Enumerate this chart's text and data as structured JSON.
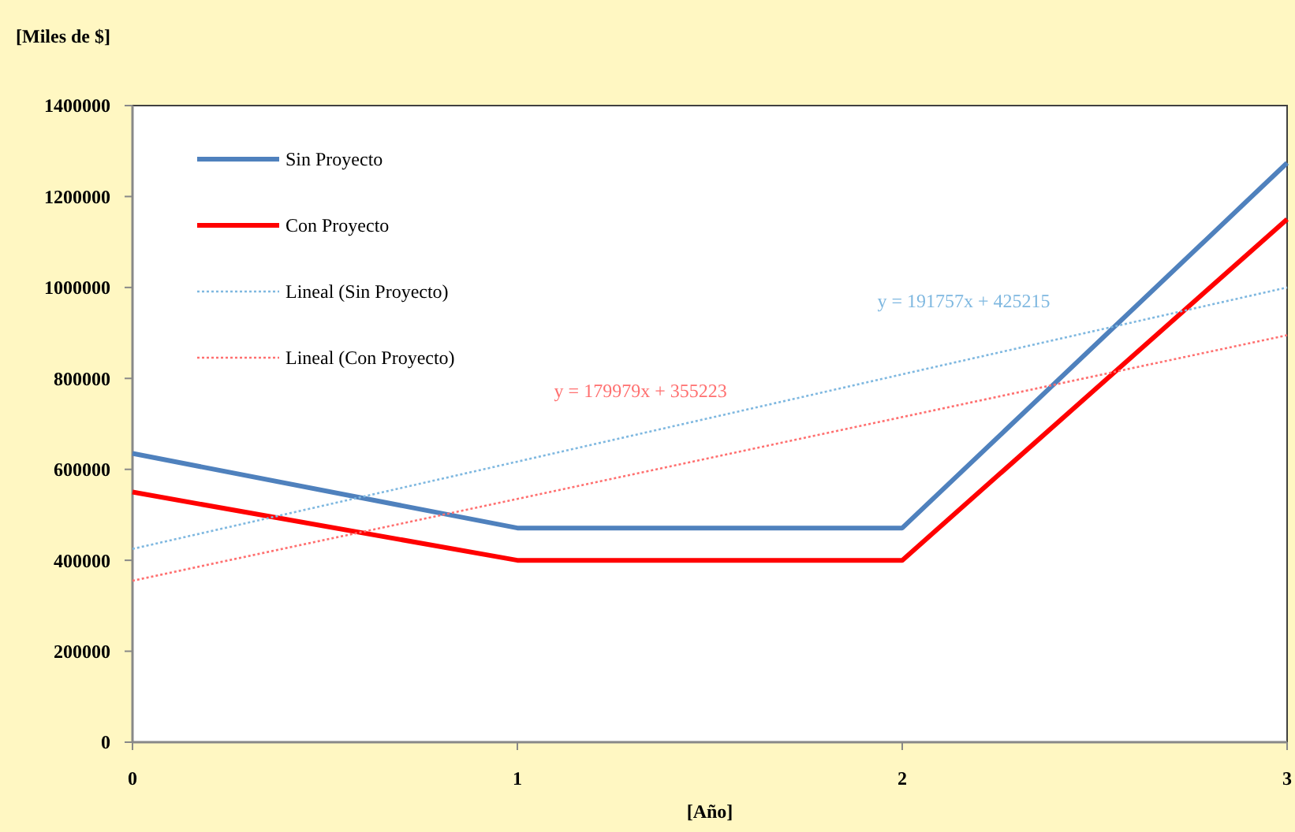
{
  "chart_data": {
    "type": "line",
    "ylabel": "[Miles de $]",
    "xlabel": "[Año]",
    "x": [
      0,
      1,
      2,
      3
    ],
    "series": [
      {
        "name": "Sin Proyecto",
        "color": "#4f81bd",
        "values": [
          635000,
          471000,
          471000,
          1274000
        ],
        "line_style": "solid"
      },
      {
        "name": "Con Proyecto",
        "color": "#ff0000",
        "values": [
          550000,
          400000,
          400000,
          1150000
        ],
        "line_style": "solid"
      },
      {
        "name": "Lineal (Sin Proyecto)",
        "color": "#7fb8e0",
        "values": [
          425000,
          617000,
          809000,
          1000000
        ],
        "line_style": "dotted"
      },
      {
        "name": "Lineal (Con Proyecto)",
        "color": "#ff7070",
        "values": [
          355000,
          535000,
          715000,
          895000
        ],
        "line_style": "dotted"
      }
    ],
    "annotations": [
      "y = 191757x + 425215",
      "y = 179979x + 355223"
    ],
    "xlim": [
      0,
      3
    ],
    "xticks": [
      0,
      1,
      2,
      3
    ],
    "ylim": [
      0,
      1400000
    ],
    "yticks": [
      0,
      200000,
      400000,
      600000,
      800000,
      1000000,
      1200000,
      1400000
    ],
    "grid": false,
    "legend": "top left",
    "marker": "none"
  }
}
